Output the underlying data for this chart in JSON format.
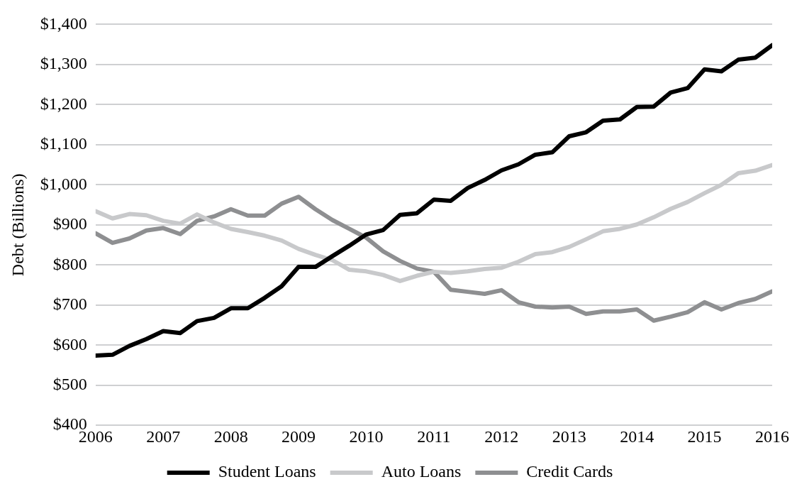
{
  "chart_data": {
    "type": "line",
    "ylabel": "Debt (Billions)",
    "x": [
      2006,
      2006.25,
      2006.5,
      2006.75,
      2007,
      2007.25,
      2007.5,
      2007.75,
      2008,
      2008.25,
      2008.5,
      2008.75,
      2009,
      2009.25,
      2009.5,
      2009.75,
      2010,
      2010.25,
      2010.5,
      2010.75,
      2011,
      2011.25,
      2011.5,
      2011.75,
      2012,
      2012.25,
      2012.5,
      2012.75,
      2013,
      2013.25,
      2013.5,
      2013.75,
      2014,
      2014.25,
      2014.5,
      2014.75,
      2015,
      2015.25,
      2015.5,
      2015.75,
      2016
    ],
    "series": [
      {
        "name": "Student Loans",
        "color": "#000000",
        "values": [
          574,
          576,
          598,
          615,
          635,
          630,
          660,
          668,
          692,
          692,
          718,
          747,
          795,
          795,
          822,
          848,
          876,
          887,
          925,
          929,
          963,
          960,
          992,
          1012,
          1036,
          1051,
          1075,
          1081,
          1121,
          1131,
          1160,
          1163,
          1194,
          1195,
          1230,
          1241,
          1288,
          1283,
          1312,
          1317,
          1348
        ]
      },
      {
        "name": "Auto Loans",
        "color": "#c8c9cb",
        "values": [
          934,
          916,
          927,
          924,
          910,
          903,
          926,
          906,
          890,
          882,
          873,
          861,
          840,
          825,
          812,
          788,
          784,
          775,
          760,
          773,
          783,
          780,
          784,
          790,
          793,
          808,
          827,
          832,
          845,
          864,
          884,
          890,
          901,
          919,
          940,
          957,
          979,
          1000,
          1029,
          1035,
          1049
        ]
      },
      {
        "name": "Credit Cards",
        "color": "#8e8f91",
        "values": [
          879,
          855,
          866,
          886,
          892,
          877,
          910,
          921,
          939,
          923,
          923,
          953,
          970,
          939,
          912,
          890,
          868,
          834,
          810,
          791,
          783,
          738,
          733,
          728,
          737,
          707,
          696,
          694,
          696,
          678,
          684,
          684,
          689,
          661,
          671,
          682,
          707,
          689,
          705,
          715,
          734
        ]
      }
    ],
    "xlim": [
      2006,
      2016
    ],
    "xticks": [
      2006,
      2007,
      2008,
      2009,
      2010,
      2011,
      2012,
      2013,
      2014,
      2015,
      2016
    ],
    "ylim": [
      400,
      1400
    ],
    "yticks": [
      {
        "value": 400,
        "label": "$400"
      },
      {
        "value": 500,
        "label": "$500"
      },
      {
        "value": 600,
        "label": "$600"
      },
      {
        "value": 700,
        "label": "$700"
      },
      {
        "value": 800,
        "label": "$800"
      },
      {
        "value": 900,
        "label": "$900"
      },
      {
        "value": 1000,
        "label": "$1,000"
      },
      {
        "value": 1100,
        "label": "$1,100"
      },
      {
        "value": 1200,
        "label": "$1,200"
      },
      {
        "value": 1300,
        "label": "$1,300"
      },
      {
        "value": 1400,
        "label": "$1,400"
      }
    ],
    "grid": "y",
    "legend": "bottom",
    "marker": "none",
    "line_style": "solid"
  }
}
